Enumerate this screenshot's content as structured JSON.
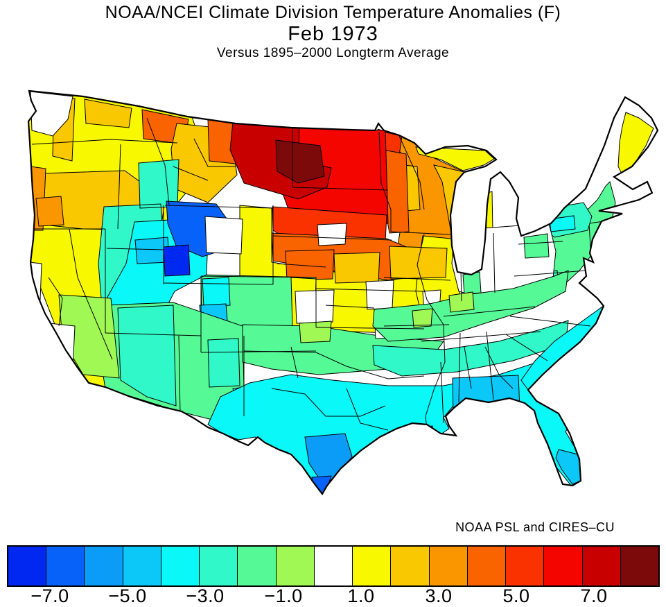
{
  "header": {
    "title": "NOAA/NCEI Climate Division Temperature Anomalies (F)",
    "subtitle": "Feb 1973",
    "baseline_note": "Versus 1895–2000 Longterm Average"
  },
  "attribution": "NOAA PSL and CIRES–CU",
  "chart_data": {
    "type": "choropleth_map",
    "title": "NOAA/NCEI Climate Division Temperature Anomalies (F)",
    "period": "Feb 1973",
    "baseline": "1895–2000 Longterm Average",
    "units": "degrees F anomaly",
    "geography": "United States climate divisions (lower 48)",
    "legend_position": "bottom",
    "colorbar": {
      "tick_labels": [
        "−7.0",
        "−5.0",
        "−3.0",
        "−1.0",
        "1.0",
        "3.0",
        "5.0",
        "7.0"
      ],
      "bin_edges": [
        -7,
        -6,
        -5,
        -4,
        -3,
        -2,
        -1,
        0,
        1,
        2,
        3,
        4,
        5,
        6,
        7,
        8
      ],
      "segment_colors": [
        "#0028F0",
        "#0662F8",
        "#0B9CF8",
        "#0BC8F8",
        "#0BF8F8",
        "#30F8C8",
        "#55FA96",
        "#A0F855",
        "#FFFFFF",
        "#F8F800",
        "#FAC800",
        "#FA9600",
        "#FA6400",
        "#FA3200",
        "#F50500",
        "#C80000",
        "#7D0A0A"
      ],
      "segment_values": [
        "< −7",
        "−7 to −6",
        "−6 to −5",
        "−5 to −4",
        "−4 to −3",
        "−3 to −2",
        "−2 to −1",
        "−1 to 0",
        "0 to +1",
        "+1 to +2",
        "+2 to +3",
        "+3 to +4",
        "+4 to +5",
        "+5 to +6",
        "+6 to +7",
        "+7 to +8",
        "> +8"
      ]
    },
    "regions": [
      {
        "name": "pacific-west-yellow",
        "anomaly_f": "+1 to +2",
        "color": "#F8F800"
      },
      {
        "name": "washington-cascades-gold",
        "anomaly_f": "+2 to +3",
        "color": "#FAC800"
      },
      {
        "name": "northeast-washington-gold",
        "anomaly_f": "+2 to +3",
        "color": "#FAC800"
      },
      {
        "name": "north-idaho-orange",
        "anomaly_f": "+4 to +5",
        "color": "#FA6400"
      },
      {
        "name": "southeast-oregon-idaho-gold",
        "anomaly_f": "+2 to +3",
        "color": "#FAC800"
      },
      {
        "name": "oregon-coast-orange",
        "anomaly_f": "+3 to +4",
        "color": "#FA9600"
      },
      {
        "name": "southwest-oregon-orange",
        "anomaly_f": "+3 to +4",
        "color": "#FA9600"
      },
      {
        "name": "central-montana-gold",
        "anomaly_f": "+2 to +3",
        "color": "#FAC800"
      },
      {
        "name": "north-montana-orange",
        "anomaly_f": "+4 to +5",
        "color": "#FA6400"
      },
      {
        "name": "minnesota-iowa-wisconsin-orange",
        "anomaly_f": "+3 to +4",
        "color": "#FA9600"
      },
      {
        "name": "east-wisconsin-gold",
        "anomaly_f": "+2 to +3",
        "color": "#FAC800"
      },
      {
        "name": "michigan-yellow-strips",
        "anomaly_f": "+1 to +2",
        "color": "#F8F800"
      },
      {
        "name": "central-minnesota-gold",
        "anomaly_f": "+2 to +3",
        "color": "#FAC800"
      },
      {
        "name": "northwest-minnesota-orange-red",
        "anomaly_f": "+5 to +6",
        "color": "#FA3200"
      },
      {
        "name": "west-minnesota-orange",
        "anomaly_f": "+4 to +5",
        "color": "#FA6400"
      },
      {
        "name": "dakotas-red",
        "anomaly_f": "+6 to +7",
        "color": "#F50500"
      },
      {
        "name": "west-north-dakota-dark-red",
        "anomaly_f": "+7 to +8",
        "color": "#C80000"
      },
      {
        "name": "central-north-dakota-maroon",
        "anomaly_f": "> +8",
        "color": "#7D0A0A"
      },
      {
        "name": "central-south-dakota-orange-red",
        "anomaly_f": "+5 to +6",
        "color": "#FA3200"
      },
      {
        "name": "south-dakota-nebraska-orange",
        "anomaly_f": "+4 to +5",
        "color": "#FA6400"
      },
      {
        "name": "central-plains-yellow",
        "anomaly_f": "+1 to +2",
        "color": "#F8F800"
      },
      {
        "name": "illinois-yellow",
        "anomaly_f": "+1 to +2",
        "color": "#F8F800"
      },
      {
        "name": "central-nebraska-orange",
        "anomaly_f": "+4 to +5",
        "color": "#FA6400"
      },
      {
        "name": "east-nebraska-gold",
        "anomaly_f": "+2 to +3",
        "color": "#FAC800"
      },
      {
        "name": "iowa-gold",
        "anomaly_f": "+2 to +3",
        "color": "#FAC800"
      },
      {
        "name": "near-zero-white-patches",
        "anomaly_f": "0 to +1",
        "color": "#FFFFFF"
      },
      {
        "name": "ohio-valley-green",
        "anomaly_f": "−2 to −1",
        "color": "#55FA96"
      },
      {
        "name": "yellow-green-patches",
        "anomaly_f": "−1 to 0",
        "color": "#A0F855"
      },
      {
        "name": "southern-plains-green",
        "anomaly_f": "−2 to −1",
        "color": "#55FA96"
      },
      {
        "name": "mid-south-turquoise",
        "anomaly_f": "−3 to −2",
        "color": "#30F8C8"
      },
      {
        "name": "gulf-coast-florida-cyan",
        "anomaly_f": "−4 to −3",
        "color": "#0BF8F8"
      },
      {
        "name": "atlantic-coast-cyan",
        "anomaly_f": "−4 to −3",
        "color": "#0BF8F8"
      },
      {
        "name": "south-alabama-panhandle-sky-blue",
        "anomaly_f": "−5 to −4",
        "color": "#0BC8F8"
      },
      {
        "name": "south-florida-sky-blue",
        "anomaly_f": "−5 to −4",
        "color": "#0BC8F8"
      },
      {
        "name": "louisiana-blue-spot",
        "anomaly_f": "−6 to −5",
        "color": "#0B9CF8"
      },
      {
        "name": "south-texas-blue",
        "anomaly_f": "−6 to −5",
        "color": "#0B9CF8"
      },
      {
        "name": "texas-tip-blue",
        "anomaly_f": "−7 to −6",
        "color": "#0662F8"
      },
      {
        "name": "west-texas-cyan",
        "anomaly_f": "−4 to −3",
        "color": "#0BF8F8"
      },
      {
        "name": "great-basin-turquoise",
        "anomaly_f": "−3 to −2",
        "color": "#30F8C8"
      },
      {
        "name": "utah-cyan",
        "anomaly_f": "−4 to −3",
        "color": "#0BF8F8"
      },
      {
        "name": "north-utah-sky-blue",
        "anomaly_f": "−5 to −4",
        "color": "#0BC8F8"
      },
      {
        "name": "northwest-wyoming-blue",
        "anomaly_f": "−7 to −6",
        "color": "#0662F8"
      },
      {
        "name": "utah-wyoming-deep-blue",
        "anomaly_f": "< −7",
        "color": "#0028F0"
      },
      {
        "name": "colorado-green",
        "anomaly_f": "−2 to −1",
        "color": "#55FA96"
      },
      {
        "name": "west-colorado-cyan",
        "anomaly_f": "−4 to −3",
        "color": "#0BF8F8"
      },
      {
        "name": "southwest-colorado-sky-blue",
        "anomaly_f": "−5 to −4",
        "color": "#0BC8F8"
      },
      {
        "name": "east-colorado-yellow",
        "anomaly_f": "+1 to +2",
        "color": "#F8F800"
      },
      {
        "name": "arizona-new-mexico-green",
        "anomaly_f": "−2 to −1",
        "color": "#55FA96"
      },
      {
        "name": "arizona-new-mexico-turquoise",
        "anomaly_f": "−3 to −2",
        "color": "#30F8C8"
      },
      {
        "name": "northeast-green",
        "anomaly_f": "−2 to −1",
        "color": "#55FA96"
      },
      {
        "name": "new-york-pennsylvania-turquoise",
        "anomaly_f": "−3 to −2",
        "color": "#30F8C8"
      },
      {
        "name": "central-new-york-cyan",
        "anomaly_f": "−4 to −3",
        "color": "#0BF8F8"
      },
      {
        "name": "maine-coast-yellow",
        "anomaly_f": "+1 to +2",
        "color": "#F8F800"
      },
      {
        "name": "west-virginia-turquoise",
        "anomaly_f": "−3 to −2",
        "color": "#30F8C8"
      }
    ]
  }
}
